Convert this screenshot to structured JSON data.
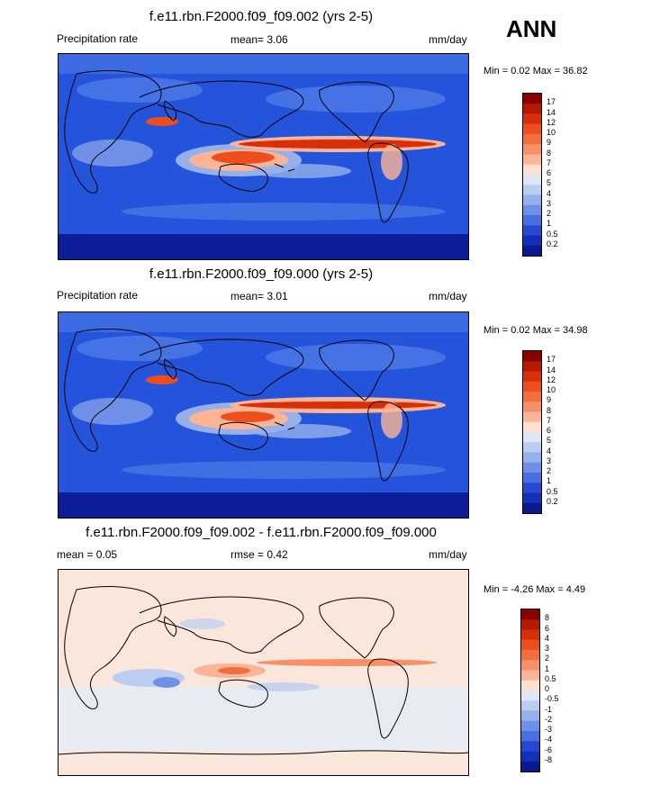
{
  "season": "ANN",
  "units": "mm/day",
  "panels": [
    {
      "title": "f.e11.rbn.F2000.f09_f09.002 (yrs 2-5)",
      "left_label": "Precipitation rate",
      "center_label": "mean=   3.06",
      "right_label": "mm/day",
      "minmax": "Min =   0.02 Max =  36.82",
      "bg": "#1e4fd8"
    },
    {
      "title": "f.e11.rbn.F2000.f09_f09.000 (yrs 2-5)",
      "left_label": "Precipitation rate",
      "center_label": "mean=   3.01",
      "right_label": "mm/day",
      "minmax": "Min =   0.02 Max =  34.98",
      "bg": "#1e4fd8"
    },
    {
      "title": "f.e11.rbn.F2000.f09_f09.002 - f.e11.rbn.F2000.f09_f09.000",
      "left_label": "mean =   0.05",
      "center_label": "rmse =   0.42",
      "right_label": "mm/day",
      "minmax": "Min =  -4.26 Max =   4.49",
      "bg": "#f7e9e3"
    }
  ],
  "colorbar_precip": {
    "labels": [
      "17",
      "14",
      "12",
      "10",
      "9",
      "8",
      "7",
      "6",
      "5",
      "4",
      "3",
      "2",
      "1",
      "0.5",
      "0.2"
    ],
    "colors": [
      "#8b0000",
      "#b31a00",
      "#d92e0a",
      "#ee4d1c",
      "#f26d3f",
      "#f79068",
      "#fbb596",
      "#fde0d0",
      "#dfe6f7",
      "#bccdf2",
      "#96b0ec",
      "#6f90e6",
      "#4a6fe0",
      "#2848d2",
      "#1430b8",
      "#0a1a8c"
    ]
  },
  "colorbar_diff": {
    "labels": [
      "8",
      "6",
      "4",
      "3",
      "2",
      "1",
      "0.5",
      "0",
      "-0.5",
      "-1",
      "-2",
      "-3",
      "-4",
      "-6",
      "-8"
    ],
    "colors": [
      "#8b0000",
      "#b31a00",
      "#d92e0a",
      "#ee4d1c",
      "#f26d3f",
      "#f79068",
      "#fbb596",
      "#fde0d0",
      "#dfe6f7",
      "#bccdf2",
      "#96b0ec",
      "#6f90e6",
      "#4a6fe0",
      "#2848d2",
      "#1430b8",
      "#0a1a8c"
    ]
  }
}
